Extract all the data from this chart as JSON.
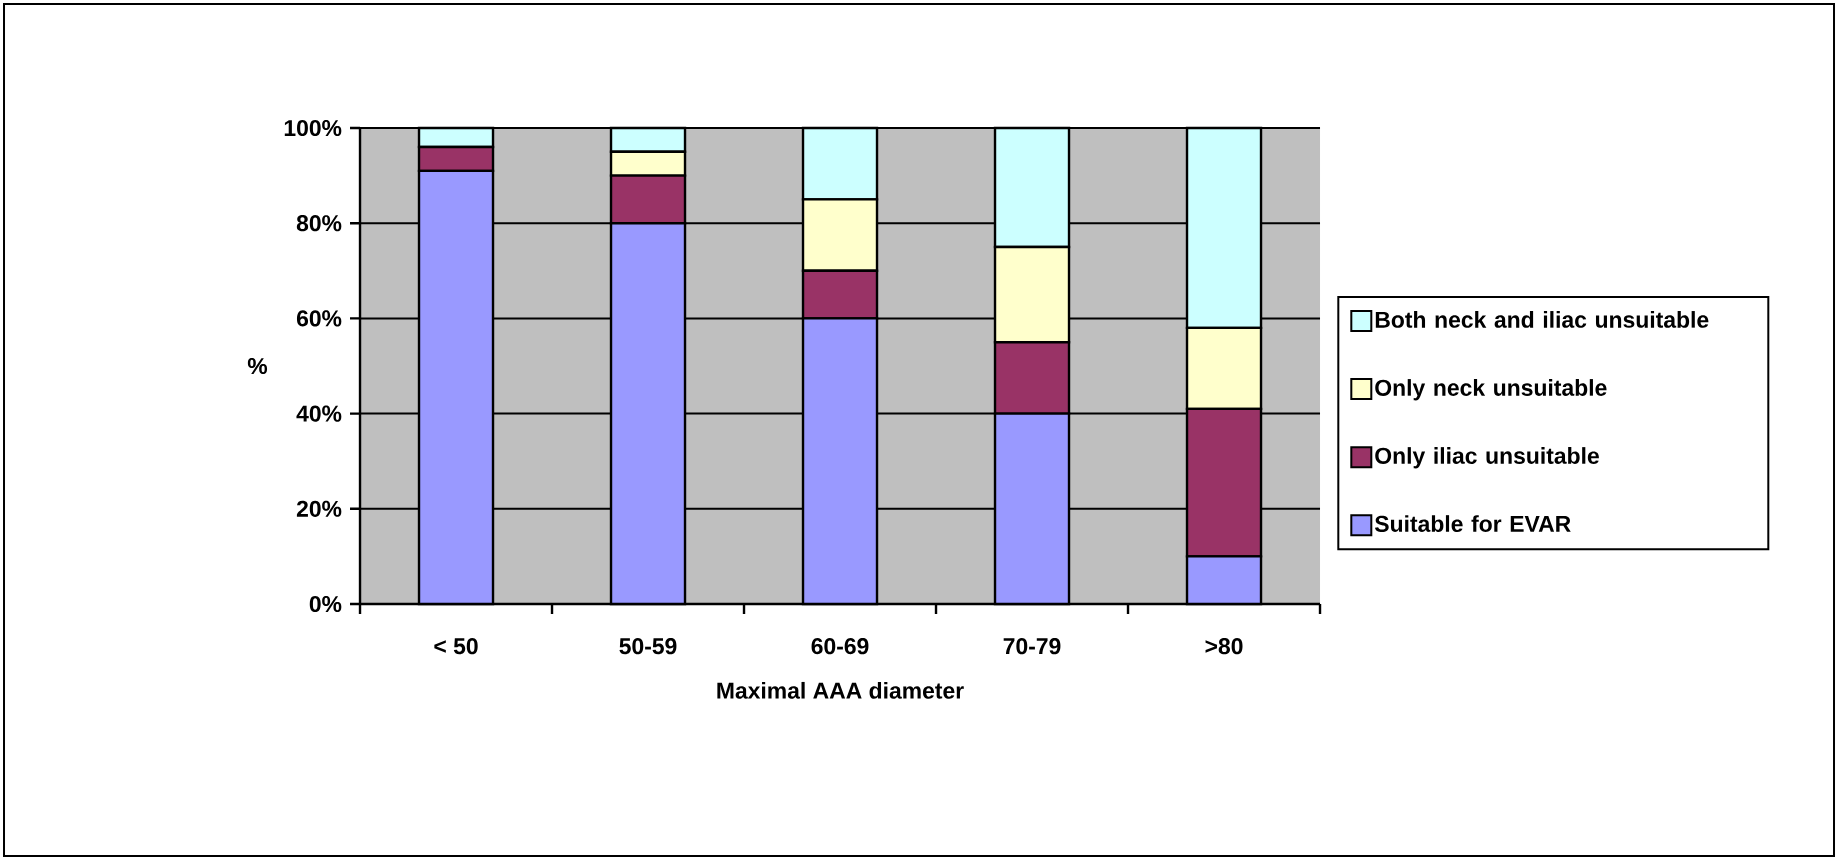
{
  "chart_data": {
    "type": "bar",
    "stacked": true,
    "xlabel": "Maximal AAA diameter",
    "ylabel": "%",
    "categories": [
      "< 50",
      "50-59",
      "60-69",
      "70-79",
      ">80"
    ],
    "series": [
      {
        "name": "Suitable for EVAR",
        "color": "#9999ff",
        "values": [
          91,
          80,
          60,
          40,
          10
        ]
      },
      {
        "name": "Only iliac unsuitable",
        "color": "#993366",
        "values": [
          5,
          10,
          10,
          15,
          31
        ]
      },
      {
        "name": "Only neck unsuitable",
        "color": "#ffffcc",
        "values": [
          0,
          5,
          15,
          20,
          17
        ]
      },
      {
        "name": "Both neck and iliac unsuitable",
        "color": "#ccffff",
        "values": [
          4,
          5,
          15,
          25,
          42
        ]
      }
    ],
    "ylim": [
      0,
      100
    ],
    "yticks": [
      {
        "value": 0,
        "label": "0%"
      },
      {
        "value": 20,
        "label": "20%"
      },
      {
        "value": 40,
        "label": "40%"
      },
      {
        "value": 60,
        "label": "60%"
      },
      {
        "value": 80,
        "label": "80%"
      },
      {
        "value": 100,
        "label": "100%"
      }
    ],
    "grid": "y",
    "legend": "right"
  }
}
